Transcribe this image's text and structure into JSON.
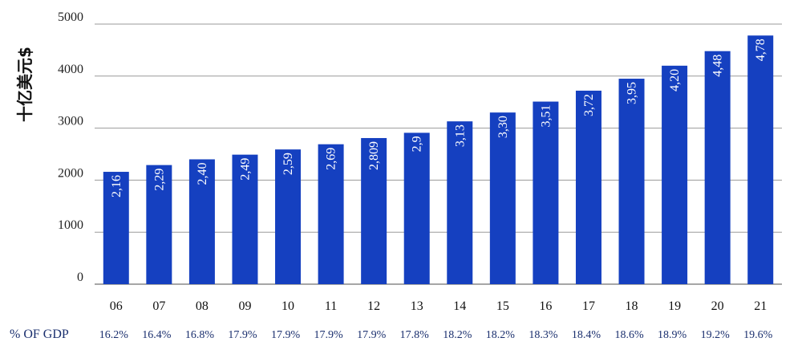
{
  "chart_data": {
    "type": "bar",
    "ylabel": "十亿美元$",
    "ylim": [
      0,
      5000
    ],
    "yticks": [
      0,
      1000,
      2000,
      3000,
      4000,
      5000
    ],
    "grid": true,
    "categories": [
      "06",
      "07",
      "08",
      "09",
      "10",
      "11",
      "12",
      "13",
      "14",
      "15",
      "16",
      "17",
      "18",
      "19",
      "20",
      "21"
    ],
    "values": [
      2160,
      2290,
      2400,
      2490,
      2590,
      2690,
      2809,
      2910,
      3130,
      3300,
      3510,
      3720,
      3950,
      4200,
      4480,
      4780
    ],
    "bar_labels": [
      "2,16",
      "2,29",
      "2,40",
      "2,49",
      "2,59",
      "2,69",
      "2,809",
      "2,9",
      "3,13",
      "3,30",
      "3,51",
      "3,72",
      "3,95",
      "4,20",
      "4,48",
      "4,78"
    ],
    "bar_color": "#1540c0",
    "secondary_row": {
      "label": "% OF GDP",
      "values": [
        "16.2%",
        "16.4%",
        "16.8%",
        "17.9%",
        "17.9%",
        "17.9%",
        "17.9%",
        "17.8%",
        "18.2%",
        "18.2%",
        "18.3%",
        "18.4%",
        "18.6%",
        "18.9%",
        "19.2%",
        "19.6%"
      ]
    }
  }
}
